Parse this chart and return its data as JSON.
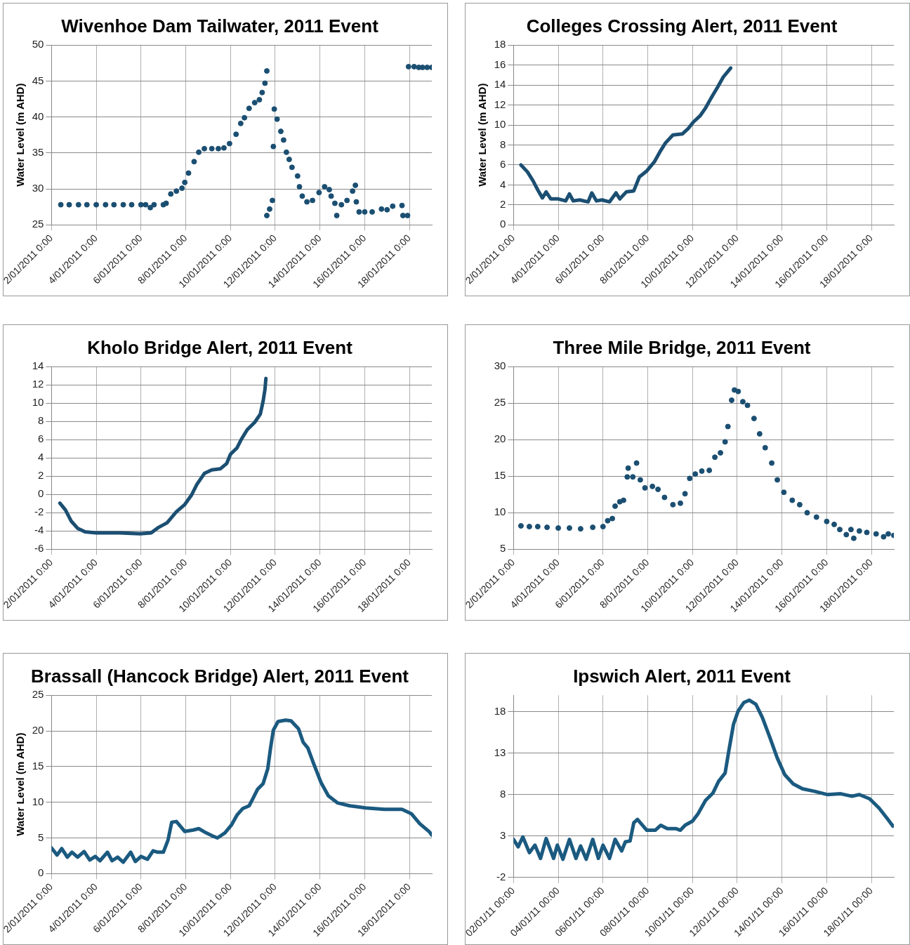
{
  "chart_data": [
    {
      "type": "scatter",
      "title": "Wivenhoe Dam Tailwater, 2011 Event",
      "ylabel": "Water Level (m AHD)",
      "grid": true,
      "legend": false,
      "marker": "circle",
      "xlim": [
        "2011-01-02T00:00",
        "2011-01-19T00:00"
      ],
      "ylim": [
        25,
        50
      ],
      "yticks": [
        25,
        30,
        35,
        40,
        45,
        50
      ],
      "xticks": [
        {
          "value": "2011-01-02T00:00",
          "label": "2/01/2011 0:00"
        },
        {
          "value": "2011-01-04T00:00",
          "label": "4/01/2011 0:00"
        },
        {
          "value": "2011-01-06T00:00",
          "label": "6/01/2011 0:00"
        },
        {
          "value": "2011-01-08T00:00",
          "label": "8/01/2011 0:00"
        },
        {
          "value": "2011-01-10T00:00",
          "label": "10/01/2011 0:00"
        },
        {
          "value": "2011-01-12T00:00",
          "label": "12/01/2011 0:00"
        },
        {
          "value": "2011-01-14T00:00",
          "label": "14/01/2011 0:00"
        },
        {
          "value": "2011-01-16T00:00",
          "label": "16/01/2011 0:00"
        },
        {
          "value": "2011-01-18T00:00",
          "label": "18/01/2011 0:00"
        }
      ],
      "series": [
        {
          "color": "#1b4f72",
          "x": [
            "2011-01-02T10:00",
            "2011-01-02T19:00",
            "2011-01-03T05:00",
            "2011-01-03T14:00",
            "2011-01-04T00:00",
            "2011-01-04T10:00",
            "2011-01-04T19:00",
            "2011-01-05T05:00",
            "2011-01-05T14:00",
            "2011-01-06T00:00",
            "2011-01-06T05:00",
            "2011-01-06T10:00",
            "2011-01-06T14:00",
            "2011-01-07T00:00",
            "2011-01-07T03:00",
            "2011-01-07T08:00",
            "2011-01-07T14:00",
            "2011-01-07T20:00",
            "2011-01-07T23:00",
            "2011-01-08T03:00",
            "2011-01-08T09:00",
            "2011-01-08T14:00",
            "2011-01-08T20:00",
            "2011-01-09T04:00",
            "2011-01-09T11:00",
            "2011-01-09T17:00",
            "2011-01-09T23:00",
            "2011-01-10T06:00",
            "2011-01-10T11:00",
            "2011-01-10T15:00",
            "2011-01-10T20:00",
            "2011-01-11T02:00",
            "2011-01-11T07:00",
            "2011-01-11T10:00",
            "2011-01-11T13:00",
            "2011-01-11T15:00",
            "2011-01-11T15:00",
            "2011-01-11T18:00",
            "2011-01-11T21:00",
            "2011-01-11T22:00",
            "2011-01-11T23:00",
            "2011-01-12T02:00",
            "2011-01-12T06:00",
            "2011-01-12T09:00",
            "2011-01-12T12:00",
            "2011-01-12T15:00",
            "2011-01-12T18:00",
            "2011-01-13T00:00",
            "2011-01-13T02:00",
            "2011-01-13T05:00",
            "2011-01-13T10:00",
            "2011-01-13T16:00",
            "2011-01-13T23:00",
            "2011-01-14T05:00",
            "2011-01-14T10:00",
            "2011-01-14T12:00",
            "2011-01-14T16:00",
            "2011-01-14T18:00",
            "2011-01-14T23:00",
            "2011-01-15T05:00",
            "2011-01-15T11:00",
            "2011-01-15T14:00",
            "2011-01-15T15:00",
            "2011-01-15T18:00",
            "2011-01-16T00:00",
            "2011-01-16T08:00",
            "2011-01-16T18:00",
            "2011-01-17T00:00",
            "2011-01-17T06:00",
            "2011-01-17T16:00",
            "2011-01-17T17:00",
            "2011-01-17T22:00",
            "2011-01-17T23:00",
            "2011-01-18T05:00",
            "2011-01-18T10:00",
            "2011-01-18T14:00",
            "2011-01-18T19:00",
            "2011-01-19T00:00"
          ],
          "values": [
            27.8,
            27.8,
            27.8,
            27.8,
            27.8,
            27.8,
            27.8,
            27.8,
            27.8,
            27.8,
            27.8,
            27.4,
            27.8,
            27.8,
            28.0,
            29.3,
            29.7,
            30.1,
            30.9,
            32.2,
            33.8,
            35.1,
            35.6,
            35.6,
            35.6,
            35.7,
            36.3,
            37.6,
            39.1,
            39.9,
            41.2,
            42.0,
            42.4,
            43.4,
            44.7,
            46.4,
            26.3,
            27.2,
            28.4,
            35.9,
            41.1,
            39.7,
            38.0,
            36.8,
            35.1,
            34.1,
            33.0,
            31.8,
            30.3,
            29.0,
            28.2,
            28.4,
            29.5,
            30.3,
            29.9,
            29.0,
            28.0,
            26.3,
            27.8,
            28.4,
            29.7,
            30.5,
            28.2,
            26.8,
            26.8,
            26.8,
            27.2,
            27.1,
            27.6,
            27.7,
            26.3,
            26.3,
            47.0,
            47.0,
            46.9,
            46.9,
            46.9,
            46.9
          ]
        }
      ]
    },
    {
      "type": "line",
      "title": "Colleges Crossing Alert, 2011 Event",
      "ylabel": "Water Level (m AHD)",
      "grid": true,
      "legend": false,
      "marker": "none",
      "xlim": [
        "2011-01-02T00:00",
        "2011-01-19T00:00"
      ],
      "ylim": [
        0,
        18
      ],
      "yticks": [
        0,
        2,
        4,
        6,
        8,
        10,
        12,
        14,
        16,
        18
      ],
      "xticks": [
        {
          "value": "2011-01-02T00:00",
          "label": "2/01/2011 0:00"
        },
        {
          "value": "2011-01-04T00:00",
          "label": "4/01/2011 0:00"
        },
        {
          "value": "2011-01-06T00:00",
          "label": "6/01/2011 0:00"
        },
        {
          "value": "2011-01-08T00:00",
          "label": "8/01/2011 0:00"
        },
        {
          "value": "2011-01-10T00:00",
          "label": "10/01/2011 0:00"
        },
        {
          "value": "2011-01-12T00:00",
          "label": "12/01/2011 0:00"
        },
        {
          "value": "2011-01-14T00:00",
          "label": "14/01/2011 0:00"
        },
        {
          "value": "2011-01-16T00:00",
          "label": "16/01/2011 0:00"
        },
        {
          "value": "2011-01-18T00:00",
          "label": "18/01/2011 0:00"
        }
      ],
      "series": [
        {
          "color": "#1b4f72",
          "x": [
            "2011-01-02T08:00",
            "2011-01-02T15:00",
            "2011-01-02T21:00",
            "2011-01-03T02:00",
            "2011-01-03T07:00",
            "2011-01-03T11:00",
            "2011-01-03T16:00",
            "2011-01-04T00:00",
            "2011-01-04T08:00",
            "2011-01-04T12:00",
            "2011-01-04T16:00",
            "2011-01-04T23:00",
            "2011-01-05T08:00",
            "2011-01-05T12:00",
            "2011-01-05T17:00",
            "2011-01-05T23:00",
            "2011-01-06T07:00",
            "2011-01-06T14:00",
            "2011-01-06T18:00",
            "2011-01-07T01:00",
            "2011-01-07T09:00",
            "2011-01-07T15:00",
            "2011-01-07T23:00",
            "2011-01-08T07:00",
            "2011-01-08T13:00",
            "2011-01-08T19:00",
            "2011-01-09T03:00",
            "2011-01-09T13:00",
            "2011-01-09T19:00",
            "2011-01-10T01:00",
            "2011-01-10T08:00",
            "2011-01-10T14:00",
            "2011-01-10T20:00",
            "2011-01-11T03:00",
            "2011-01-11T09:00",
            "2011-01-11T17:00"
          ],
          "values": [
            6.0,
            5.3,
            4.4,
            3.5,
            2.7,
            3.3,
            2.6,
            2.6,
            2.4,
            3.1,
            2.4,
            2.5,
            2.3,
            3.2,
            2.4,
            2.5,
            2.3,
            3.2,
            2.6,
            3.3,
            3.4,
            4.8,
            5.4,
            6.3,
            7.3,
            8.2,
            9.0,
            9.1,
            9.6,
            10.3,
            10.9,
            11.7,
            12.7,
            13.8,
            14.8,
            15.7
          ]
        }
      ]
    },
    {
      "type": "line",
      "title": "Kholo Bridge Alert, 2011 Event",
      "grid": true,
      "legend": false,
      "marker": "none",
      "xlim": [
        "2011-01-02T00:00",
        "2011-01-19T00:00"
      ],
      "ylim": [
        -6,
        14
      ],
      "yticks": [
        -6,
        -4,
        -2,
        0,
        2,
        4,
        6,
        8,
        10,
        12,
        14
      ],
      "xticks": [
        {
          "value": "2011-01-02T00:00",
          "label": "2/01/2011 0:00"
        },
        {
          "value": "2011-01-04T00:00",
          "label": "4/01/2011 0:00"
        },
        {
          "value": "2011-01-06T00:00",
          "label": "6/01/2011 0:00"
        },
        {
          "value": "2011-01-08T00:00",
          "label": "8/01/2011 0:00"
        },
        {
          "value": "2011-01-10T00:00",
          "label": "10/01/2011 0:00"
        },
        {
          "value": "2011-01-12T00:00",
          "label": "12/01/2011 0:00"
        },
        {
          "value": "2011-01-14T00:00",
          "label": "14/01/2011 0:00"
        },
        {
          "value": "2011-01-16T00:00",
          "label": "16/01/2011 0:00"
        },
        {
          "value": "2011-01-18T00:00",
          "label": "18/01/2011 0:00"
        }
      ],
      "series": [
        {
          "color": "#1b4f72",
          "x": [
            "2011-01-02T09:00",
            "2011-01-02T15:00",
            "2011-01-02T21:00",
            "2011-01-03T04:00",
            "2011-01-03T12:00",
            "2011-01-04T00:00",
            "2011-01-05T01:00",
            "2011-01-05T23:00",
            "2011-01-06T11:00",
            "2011-01-06T19:00",
            "2011-01-07T04:00",
            "2011-01-07T14:00",
            "2011-01-07T23:00",
            "2011-01-08T06:00",
            "2011-01-08T12:00",
            "2011-01-08T20:00",
            "2011-01-09T04:00",
            "2011-01-09T13:00",
            "2011-01-09T20:00",
            "2011-01-10T00:00",
            "2011-01-10T07:00",
            "2011-01-10T12:00",
            "2011-01-10T18:00",
            "2011-01-11T02:00",
            "2011-01-11T08:00",
            "2011-01-11T11:00",
            "2011-01-11T13:00",
            "2011-01-11T14:00"
          ],
          "values": [
            -0.95,
            -1.7,
            -2.9,
            -3.7,
            -4.1,
            -4.2,
            -4.2,
            -4.3,
            -4.2,
            -3.6,
            -3.1,
            -1.9,
            -1.1,
            -0.1,
            1.1,
            2.3,
            2.7,
            2.8,
            3.4,
            4.4,
            5.1,
            6.1,
            7.1,
            7.9,
            8.8,
            10.2,
            11.5,
            12.7
          ]
        }
      ]
    },
    {
      "type": "scatter",
      "title": "Three Mile Bridge, 2011 Event",
      "grid": true,
      "legend": false,
      "marker": "circle",
      "xlim": [
        "2011-01-02T00:00",
        "2011-01-19T00:00"
      ],
      "ylim": [
        5,
        30
      ],
      "yticks": [
        5,
        10,
        15,
        20,
        25,
        30
      ],
      "xticks": [
        {
          "value": "2011-01-02T00:00",
          "label": "2/01/2011 0:00"
        },
        {
          "value": "2011-01-04T00:00",
          "label": "4/01/2011 0:00"
        },
        {
          "value": "2011-01-06T00:00",
          "label": "6/01/2011 0:00"
        },
        {
          "value": "2011-01-08T00:00",
          "label": "8/01/2011 0:00"
        },
        {
          "value": "2011-01-10T00:00",
          "label": "10/01/2011 0:00"
        },
        {
          "value": "2011-01-12T00:00",
          "label": "12/01/2011 0:00"
        },
        {
          "value": "2011-01-14T00:00",
          "label": "14/01/2011 0:00"
        },
        {
          "value": "2011-01-16T00:00",
          "label": "16/01/2011 0:00"
        },
        {
          "value": "2011-01-18T00:00",
          "label": "18/01/2011 0:00"
        }
      ],
      "series": [
        {
          "color": "#1b4f72",
          "x": [
            "2011-01-02T08:00",
            "2011-01-02T17:00",
            "2011-01-03T02:00",
            "2011-01-03T12:00",
            "2011-01-04T00:00",
            "2011-01-04T12:00",
            "2011-01-05T00:00",
            "2011-01-05T13:00",
            "2011-01-06T00:00",
            "2011-01-06T05:00",
            "2011-01-06T10:00",
            "2011-01-06T13:00",
            "2011-01-06T18:00",
            "2011-01-06T22:00",
            "2011-01-07T02:00",
            "2011-01-07T03:00",
            "2011-01-07T08:00",
            "2011-01-07T12:00",
            "2011-01-07T16:00",
            "2011-01-07T21:00",
            "2011-01-08T05:00",
            "2011-01-08T11:00",
            "2011-01-08T18:00",
            "2011-01-09T03:00",
            "2011-01-09T11:00",
            "2011-01-09T16:00",
            "2011-01-09T21:00",
            "2011-01-10T03:00",
            "2011-01-10T10:00",
            "2011-01-10T18:00",
            "2011-01-11T00:00",
            "2011-01-11T06:00",
            "2011-01-11T11:00",
            "2011-01-11T14:00",
            "2011-01-11T18:00",
            "2011-01-11T21:00",
            "2011-01-12T01:00",
            "2011-01-12T06:00",
            "2011-01-12T11:00",
            "2011-01-12T18:00",
            "2011-01-13T00:00",
            "2011-01-13T06:00",
            "2011-01-13T13:00",
            "2011-01-13T19:00",
            "2011-01-14T02:00",
            "2011-01-14T11:00",
            "2011-01-14T19:00",
            "2011-01-15T03:00",
            "2011-01-15T13:00",
            "2011-01-16T00:00",
            "2011-01-16T08:00",
            "2011-01-16T14:00",
            "2011-01-16T21:00",
            "2011-01-17T02:00",
            "2011-01-17T05:00",
            "2011-01-17T11:00",
            "2011-01-17T19:00",
            "2011-01-18T05:00",
            "2011-01-18T13:00",
            "2011-01-18T18:00",
            "2011-01-19T00:00"
          ],
          "values": [
            8.2,
            8.1,
            8.1,
            8.0,
            7.9,
            7.9,
            7.8,
            8.0,
            8.1,
            8.9,
            9.2,
            10.9,
            11.5,
            11.7,
            14.9,
            16.1,
            14.9,
            16.8,
            14.5,
            13.4,
            13.6,
            13.2,
            12.1,
            11.1,
            11.3,
            12.6,
            14.7,
            15.3,
            15.7,
            15.8,
            17.6,
            18.2,
            19.7,
            21.8,
            25.4,
            26.8,
            26.6,
            25.2,
            24.7,
            22.9,
            20.8,
            18.9,
            16.8,
            14.5,
            12.8,
            11.7,
            11.1,
            10.0,
            9.4,
            8.8,
            8.4,
            7.7,
            7.0,
            7.7,
            6.5,
            7.5,
            7.3,
            7.1,
            6.7,
            7.1,
            6.9
          ]
        }
      ]
    },
    {
      "type": "line",
      "title": "Brassall (Hancock Bridge) Alert, 2011 Event",
      "ylabel": "Water Level (m AHD)",
      "grid": true,
      "legend": false,
      "marker": "none",
      "xlim": [
        "2011-01-02T00:00",
        "2011-01-19T00:00"
      ],
      "ylim": [
        0,
        25
      ],
      "yticks": [
        0,
        5,
        10,
        15,
        20,
        25
      ],
      "xticks": [
        {
          "value": "2011-01-02T00:00",
          "label": "2/01/2011 0:00"
        },
        {
          "value": "2011-01-04T00:00",
          "label": "4/01/2011 0:00"
        },
        {
          "value": "2011-01-06T00:00",
          "label": "6/01/2011 0:00"
        },
        {
          "value": "2011-01-08T00:00",
          "label": "8/01/2011 0:00"
        },
        {
          "value": "2011-01-10T00:00",
          "label": "10/01/2011 0:00"
        },
        {
          "value": "2011-01-12T00:00",
          "label": "12/01/2011 0:00"
        },
        {
          "value": "2011-01-14T00:00",
          "label": "14/01/2011 0:00"
        },
        {
          "value": "2011-01-16T00:00",
          "label": "16/01/2011 0:00"
        },
        {
          "value": "2011-01-18T00:00",
          "label": "18/01/2011 0:00"
        }
      ],
      "series": [
        {
          "color": "#1b5a80",
          "x": [
            "2011-01-02T00:00",
            "2011-01-02T06:00",
            "2011-01-02T11:00",
            "2011-01-02T17:00",
            "2011-01-02T22:00",
            "2011-01-03T04:00",
            "2011-01-03T11:00",
            "2011-01-03T17:00",
            "2011-01-03T23:00",
            "2011-01-04T04:00",
            "2011-01-04T12:00",
            "2011-01-04T17:00",
            "2011-01-04T23:00",
            "2011-01-05T05:00",
            "2011-01-05T13:00",
            "2011-01-05T18:00",
            "2011-01-06T00:00",
            "2011-01-06T07:00",
            "2011-01-06T13:00",
            "2011-01-06T18:00",
            "2011-01-07T00:00",
            "2011-01-07T05:00",
            "2011-01-07T09:00",
            "2011-01-07T14:00",
            "2011-01-07T23:00",
            "2011-01-08T08:00",
            "2011-01-08T14:00",
            "2011-01-08T22:00",
            "2011-01-09T06:00",
            "2011-01-09T10:00",
            "2011-01-09T18:00",
            "2011-01-10T01:00",
            "2011-01-10T07:00",
            "2011-01-10T13:00",
            "2011-01-10T20:00",
            "2011-01-11T00:00",
            "2011-01-11T05:00",
            "2011-01-11T11:00",
            "2011-01-11T16:00",
            "2011-01-11T19:00",
            "2011-01-11T22:00",
            "2011-01-12T03:00",
            "2011-01-12T11:00",
            "2011-01-12T17:00",
            "2011-01-13T01:00",
            "2011-01-13T06:00",
            "2011-01-13T11:00",
            "2011-01-13T17:00",
            "2011-01-14T01:00",
            "2011-01-14T09:00",
            "2011-01-14T19:00",
            "2011-01-15T08:00",
            "2011-01-16T01:00",
            "2011-01-16T21:00",
            "2011-01-17T16:00",
            "2011-01-18T02:00",
            "2011-01-18T11:00",
            "2011-01-18T21:00",
            "2011-01-19T00:00"
          ],
          "values": [
            3.6,
            2.6,
            3.5,
            2.3,
            3.0,
            2.3,
            3.1,
            1.9,
            2.4,
            1.8,
            3.0,
            1.8,
            2.3,
            1.6,
            3.0,
            1.7,
            2.4,
            2.0,
            3.2,
            3.0,
            3.0,
            4.7,
            7.2,
            7.3,
            5.9,
            6.1,
            6.3,
            5.7,
            5.2,
            5.0,
            5.7,
            6.8,
            8.2,
            9.1,
            9.5,
            10.5,
            11.8,
            12.6,
            14.7,
            17.6,
            20.1,
            21.3,
            21.5,
            21.4,
            20.3,
            18.4,
            17.6,
            15.5,
            12.8,
            10.9,
            9.9,
            9.5,
            9.2,
            9.0,
            9.0,
            8.4,
            7.0,
            5.9,
            5.4
          ]
        }
      ]
    },
    {
      "type": "line",
      "title": "Ipswich Alert, 2011 Event",
      "grid": true,
      "legend": false,
      "marker": "none",
      "xlim": [
        "2011-01-02T00:00",
        "2011-01-19T00:00"
      ],
      "ylim": [
        -2,
        20
      ],
      "yticks": [
        -2,
        3,
        8,
        13,
        18
      ],
      "xticks": [
        {
          "value": "2011-01-02T00:00",
          "label": "02/01/11 00:00"
        },
        {
          "value": "2011-01-04T00:00",
          "label": "04/01/11 00:00"
        },
        {
          "value": "2011-01-06T00:00",
          "label": "06/01/11 00:00"
        },
        {
          "value": "2011-01-08T00:00",
          "label": "08/01/11 00:00"
        },
        {
          "value": "2011-01-10T00:00",
          "label": "10/01/11 00:00"
        },
        {
          "value": "2011-01-12T00:00",
          "label": "12/01/11 00:00"
        },
        {
          "value": "2011-01-14T00:00",
          "label": "14/01/11 00:00"
        },
        {
          "value": "2011-01-16T00:00",
          "label": "16/01/11 00:00"
        },
        {
          "value": "2011-01-18T00:00",
          "label": "18/01/11 00:00"
        }
      ],
      "series": [
        {
          "color": "#1b5a80",
          "x": [
            "2011-01-02T00:00",
            "2011-01-02T05:00",
            "2011-01-02T10:00",
            "2011-01-02T17:00",
            "2011-01-02T23:00",
            "2011-01-03T05:00",
            "2011-01-03T11:00",
            "2011-01-03T19:00",
            "2011-01-03T23:00",
            "2011-01-04T05:00",
            "2011-01-04T12:00",
            "2011-01-04T19:00",
            "2011-01-05T00:00",
            "2011-01-05T06:00",
            "2011-01-05T13:00",
            "2011-01-05T19:00",
            "2011-01-06T00:00",
            "2011-01-06T07:00",
            "2011-01-06T13:00",
            "2011-01-06T20:00",
            "2011-01-07T00:00",
            "2011-01-07T05:00",
            "2011-01-07T09:00",
            "2011-01-07T13:00",
            "2011-01-07T23:00",
            "2011-01-08T08:00",
            "2011-01-08T14:00",
            "2011-01-08T21:00",
            "2011-01-09T06:00",
            "2011-01-09T11:00",
            "2011-01-09T16:00",
            "2011-01-10T00:00",
            "2011-01-10T06:00",
            "2011-01-10T14:00",
            "2011-01-10T22:00",
            "2011-01-11T04:00",
            "2011-01-11T11:00",
            "2011-01-11T15:00",
            "2011-01-11T20:00",
            "2011-01-12T01:00",
            "2011-01-12T07:00",
            "2011-01-12T13:00",
            "2011-01-12T20:00",
            "2011-01-13T03:00",
            "2011-01-13T11:00",
            "2011-01-13T19:00",
            "2011-01-14T03:00",
            "2011-01-14T12:00",
            "2011-01-14T22:00",
            "2011-01-15T11:00",
            "2011-01-16T01:00",
            "2011-01-16T15:00",
            "2011-01-17T03:00",
            "2011-01-17T11:00",
            "2011-01-17T22:00",
            "2011-01-18T08:00",
            "2011-01-18T17:00",
            "2011-01-18T23:00"
          ],
          "values": [
            2.6,
            1.7,
            2.9,
            1.0,
            1.9,
            0.3,
            2.7,
            0.3,
            1.9,
            0.2,
            2.6,
            0.3,
            1.8,
            0.2,
            2.6,
            0.3,
            1.9,
            0.3,
            2.6,
            1.2,
            2.3,
            2.4,
            4.6,
            5.0,
            3.7,
            3.7,
            4.3,
            3.9,
            3.9,
            3.7,
            4.3,
            4.8,
            5.7,
            7.3,
            8.2,
            9.6,
            10.6,
            13.3,
            16.5,
            18.1,
            19.1,
            19.4,
            18.9,
            17.3,
            14.9,
            12.4,
            10.4,
            9.3,
            8.7,
            8.4,
            8.0,
            8.1,
            7.8,
            8.0,
            7.5,
            6.4,
            5.1,
            4.2
          ]
        }
      ]
    }
  ]
}
